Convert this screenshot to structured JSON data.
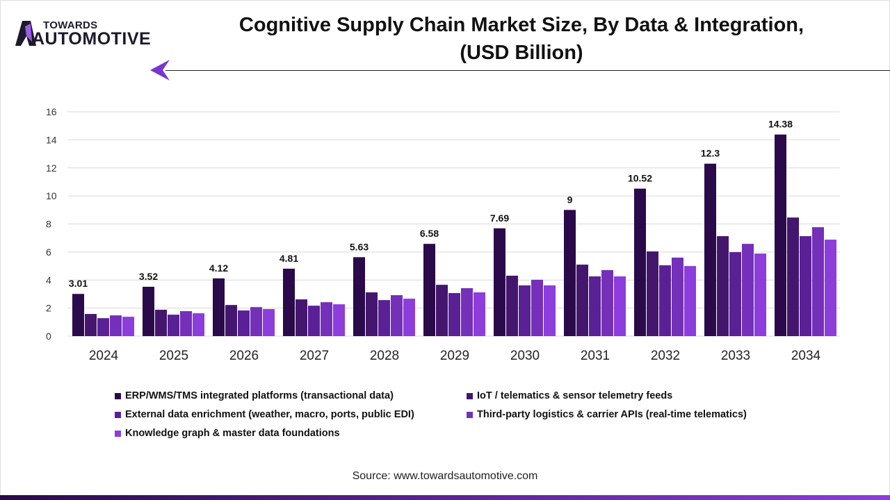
{
  "brand": {
    "line1": "TOWARDS",
    "line2": "AUTOMOTIVE"
  },
  "chart_data": {
    "type": "bar",
    "title": "Cognitive Supply Chain Market Size, By Data & Integration, (USD Billion)",
    "title_line1": "Cognitive Supply Chain Market Size, By Data & Integration,",
    "title_line2": "(USD Billion)",
    "categories": [
      "2024",
      "2025",
      "2026",
      "2027",
      "2028",
      "2029",
      "2030",
      "2031",
      "2032",
      "2033",
      "2034"
    ],
    "ylim": [
      0,
      16
    ],
    "yticks": [
      "0",
      "2",
      "4",
      "6",
      "8",
      "10",
      "12",
      "14",
      "16"
    ],
    "grid": true,
    "legend_position": "bottom",
    "series": [
      {
        "name": "ERP/WMS/TMS integrated platforms (transactional data)",
        "color": "#2a0a4a",
        "values": [
          3.01,
          3.52,
          4.12,
          4.81,
          5.63,
          6.58,
          7.69,
          9,
          10.52,
          12.3,
          14.38
        ],
        "labels": [
          "3.01",
          "3.52",
          "4.12",
          "4.81",
          "5.63",
          "6.58",
          "7.69",
          "9",
          "10.52",
          "12.3",
          "14.38"
        ]
      },
      {
        "name": "IoT / telematics & sensor telemetry feeds",
        "color": "#44166e",
        "values": [
          1.58,
          1.88,
          2.22,
          2.62,
          3.12,
          3.66,
          4.31,
          5.1,
          6.04,
          7.13,
          8.46
        ]
      },
      {
        "name": "External data enrichment (weather, macro, ports, public EDI)",
        "color": "#5a2096",
        "values": [
          1.28,
          1.53,
          1.83,
          2.17,
          2.57,
          3.07,
          3.62,
          4.26,
          5.05,
          5.99,
          7.13
        ]
      },
      {
        "name": "Third-party logistics & carrier APIs (real-time telematics)",
        "color": "#7430b8",
        "values": [
          1.48,
          1.78,
          2.07,
          2.42,
          2.92,
          3.42,
          4.02,
          4.71,
          5.6,
          6.58,
          7.77
        ]
      },
      {
        "name": "Knowledge graph & master data foundations",
        "color": "#8c3ddb",
        "values": [
          1.38,
          1.63,
          1.93,
          2.27,
          2.67,
          3.12,
          3.62,
          4.26,
          5.0,
          5.89,
          6.88
        ]
      }
    ]
  },
  "source": "Source: www.towardsautomotive.com"
}
